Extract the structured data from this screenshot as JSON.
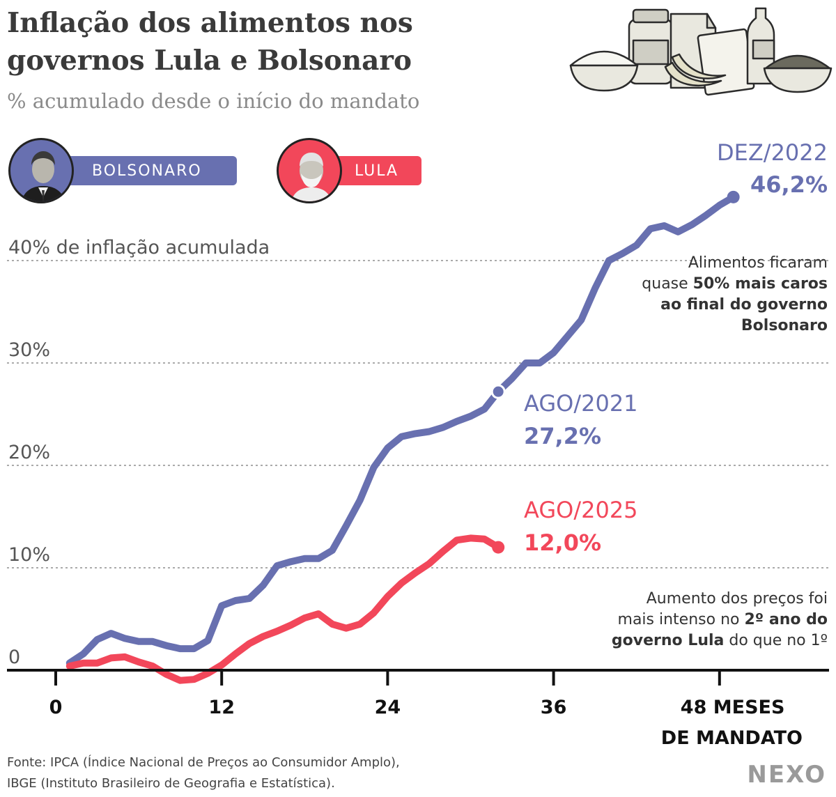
{
  "header": {
    "title_line1": "Inflação dos alimentos nos",
    "title_line2": "governos Lula e Bolsonaro",
    "subtitle": "% acumulado desde o início do mandato"
  },
  "legend": {
    "bolsonaro": "BOLSONARO",
    "lula": "LULA"
  },
  "colors": {
    "bolsonaro": "#6870b0",
    "lula": "#f2475a",
    "axis": "#111111",
    "grid": "#777777",
    "text": "#333333"
  },
  "chart_data": {
    "type": "line",
    "xlabel_line1": "48 MESES",
    "xlabel_line2": "DE MANDATO",
    "x_ticks": [
      0,
      12,
      24,
      36,
      48
    ],
    "xlim": [
      0,
      58
    ],
    "ylim": [
      0,
      50
    ],
    "y_gridlines": [
      10,
      20,
      30,
      40
    ],
    "y_tick_labels": [
      {
        "value": 0,
        "label": "0"
      },
      {
        "value": 10,
        "label": "10%"
      },
      {
        "value": 20,
        "label": "20%"
      },
      {
        "value": 30,
        "label": "30%"
      },
      {
        "value": 40,
        "label": "40% de inflação acumulada"
      }
    ],
    "series": [
      {
        "key": "bolsonaro",
        "values": [
          [
            1,
            0.7
          ],
          [
            2,
            1.6
          ],
          [
            3,
            3.0
          ],
          [
            4,
            3.6
          ],
          [
            5,
            3.1
          ],
          [
            6,
            2.8
          ],
          [
            7,
            2.8
          ],
          [
            8,
            2.4
          ],
          [
            9,
            2.1
          ],
          [
            10,
            2.1
          ],
          [
            11,
            2.9
          ],
          [
            12,
            6.3
          ],
          [
            13,
            6.8
          ],
          [
            14,
            7.0
          ],
          [
            15,
            8.3
          ],
          [
            16,
            10.2
          ],
          [
            17,
            10.6
          ],
          [
            18,
            10.9
          ],
          [
            19,
            10.9
          ],
          [
            20,
            11.7
          ],
          [
            21,
            14.1
          ],
          [
            22,
            16.6
          ],
          [
            23,
            19.8
          ],
          [
            24,
            21.7
          ],
          [
            25,
            22.8
          ],
          [
            26,
            23.1
          ],
          [
            27,
            23.3
          ],
          [
            28,
            23.7
          ],
          [
            29,
            24.3
          ],
          [
            30,
            24.8
          ],
          [
            31,
            25.5
          ],
          [
            32,
            27.2
          ],
          [
            33,
            28.5
          ],
          [
            34,
            30.0
          ],
          [
            35,
            30.0
          ],
          [
            36,
            31.0
          ],
          [
            37,
            32.6
          ],
          [
            38,
            34.2
          ],
          [
            39,
            37.3
          ],
          [
            40,
            40.0
          ],
          [
            41,
            40.7
          ],
          [
            42,
            41.5
          ],
          [
            43,
            43.1
          ],
          [
            44,
            43.4
          ],
          [
            45,
            42.8
          ],
          [
            46,
            43.5
          ],
          [
            47,
            44.4
          ],
          [
            48,
            45.4
          ],
          [
            49,
            46.2
          ]
        ]
      },
      {
        "key": "lula",
        "values": [
          [
            1,
            0.4
          ],
          [
            2,
            0.7
          ],
          [
            3,
            0.7
          ],
          [
            4,
            1.2
          ],
          [
            5,
            1.3
          ],
          [
            6,
            0.8
          ],
          [
            7,
            0.4
          ],
          [
            8,
            -0.4
          ],
          [
            9,
            -1.0
          ],
          [
            10,
            -0.9
          ],
          [
            11,
            -0.3
          ],
          [
            12,
            0.5
          ],
          [
            13,
            1.6
          ],
          [
            14,
            2.6
          ],
          [
            15,
            3.3
          ],
          [
            16,
            3.8
          ],
          [
            17,
            4.4
          ],
          [
            18,
            5.1
          ],
          [
            19,
            5.5
          ],
          [
            20,
            4.5
          ],
          [
            21,
            4.1
          ],
          [
            22,
            4.5
          ],
          [
            23,
            5.6
          ],
          [
            24,
            7.2
          ],
          [
            25,
            8.5
          ],
          [
            26,
            9.5
          ],
          [
            27,
            10.4
          ],
          [
            28,
            11.6
          ],
          [
            29,
            12.7
          ],
          [
            30,
            12.9
          ],
          [
            31,
            12.8
          ],
          [
            32,
            12.0
          ]
        ]
      }
    ],
    "annotations": [
      {
        "key": "bolsonaro",
        "line1": "DEZ/2022",
        "line2": "46,2%"
      },
      {
        "key": "bolsonaro",
        "line1": "AGO/2021",
        "line2": "27,2%"
      },
      {
        "key": "lula",
        "line1": "AGO/2025",
        "line2": "12,0%"
      }
    ],
    "note_bolsonaro": {
      "l1": "Alimentos ficaram",
      "l2a": "quase ",
      "l2b": "50% mais caros",
      "l3": "ao final do governo",
      "l4": "Bolsonaro"
    },
    "note_lula": {
      "l1": "Aumento dos preços foi",
      "l2a": "mais intenso no ",
      "l2b": "2º ano do",
      "l3a": "governo Lula",
      "l3b": " do que no 1º"
    }
  },
  "footer": {
    "source_line1": "Fonte: IPCA (Índice Nacional de Preços ao Consumidor Amplo),",
    "source_line2": "IBGE (Instituto Brasileiro de Geografia e Estatística).",
    "brand": "NEXO"
  }
}
